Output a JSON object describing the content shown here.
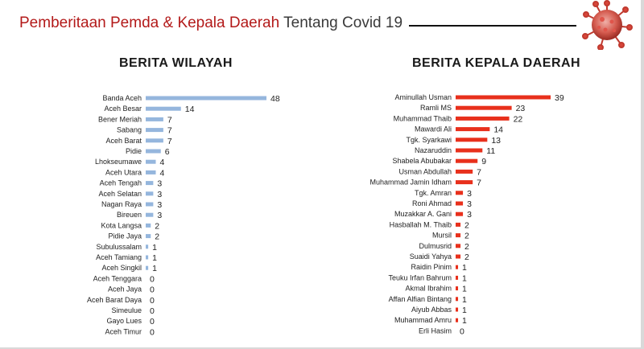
{
  "header": {
    "title_part1": "Pemberitaan Pemda & Kepala Daerah",
    "title_part2": "Tentang Covid 19"
  },
  "colors": {
    "title_red": "#b31a1a",
    "left_bar": "#95b6dd",
    "right_bar": "#e8301c"
  },
  "chart_data": [
    {
      "type": "bar",
      "orientation": "horizontal",
      "title": "BERITA WILAYAH",
      "categories": [
        "Banda Aceh",
        "Aceh Besar",
        "Bener Meriah",
        "Sabang",
        "Aceh Barat",
        "Pidie",
        "Lhokseumawe",
        "Aceh Utara",
        "Aceh Tengah",
        "Aceh Selatan",
        "Nagan Raya",
        "Bireuen",
        "Kota Langsa",
        "Pidie Jaya",
        "Subulussalam",
        "Aceh Tamiang",
        "Aceh Singkil",
        "Aceh Tenggara",
        "Aceh Jaya",
        "Aceh Barat Daya",
        "Simeulue",
        "Gayo Lues",
        "Aceh Timur"
      ],
      "values": [
        48,
        14,
        7,
        7,
        7,
        6,
        4,
        4,
        3,
        3,
        3,
        3,
        2,
        2,
        1,
        1,
        1,
        0,
        0,
        0,
        0,
        0,
        0
      ],
      "xlim": [
        0,
        48
      ],
      "grid": false,
      "data_labels": true,
      "bar_color": "#95b6dd"
    },
    {
      "type": "bar",
      "orientation": "horizontal",
      "title": "BERITA KEPALA DAERAH",
      "categories": [
        "Aminullah Usman",
        "Ramli MS",
        "Muhammad Thaib",
        "Mawardi Ali",
        "Tgk. Syarkawi",
        "Nazaruddin",
        "Shabela Abubakar",
        "Usman Abdullah",
        "Muhammad Jamin Idham",
        "Tgk. Amran",
        "Roni Ahmad",
        "Muzakkar A. Gani",
        "Hasballah M. Thaib",
        "Mursil",
        "Dulmusrid",
        "Suaidi Yahya",
        "Raidin Pinim",
        "Teuku Irfan Bahrum",
        "Akmal Ibrahim",
        "Affan Alfian Bintang",
        "Aiyub Abbas",
        "Muhammad Amru",
        "Erli Hasim"
      ],
      "values": [
        39,
        23,
        22,
        14,
        13,
        11,
        9,
        7,
        7,
        3,
        3,
        3,
        2,
        2,
        2,
        2,
        1,
        1,
        1,
        1,
        1,
        1,
        0
      ],
      "xlim": [
        0,
        39
      ],
      "grid": false,
      "data_labels": true,
      "bar_color": "#e8301c"
    }
  ]
}
